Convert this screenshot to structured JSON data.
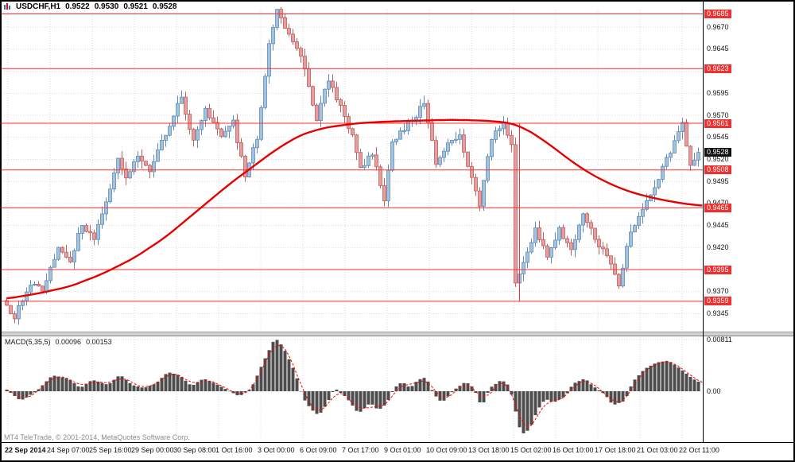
{
  "window": {
    "title_symbol": "USDCHF,H1",
    "ohlc": {
      "open": "0.9522",
      "high": "0.9530",
      "low": "0.9521",
      "close": "0.9528"
    },
    "copyright": "MT4 TeleTrade, © 2001-2014, MetaQuotes Software Corp."
  },
  "colors": {
    "up_fill": "#a3c2de",
    "up_stroke": "#5d8cba",
    "down_fill": "#e59d9d",
    "down_stroke": "#c25e5e",
    "ma": "#e60000",
    "level": "#ff2e2e",
    "grid": "#d9d9d9",
    "histogram": "#4d4d4d",
    "signal": "#ff0000",
    "tag_red": "#ee3030",
    "tag_black": "#111111"
  },
  "chart_data": {
    "type": "candlestick",
    "symbol": "USDCHF",
    "timeframe": "H1",
    "quote": {
      "open": 0.9522,
      "high": 0.953,
      "low": 0.9521,
      "close": 0.9528
    },
    "current_price": 0.9528,
    "y_axis": {
      "min": 0.933,
      "max": 0.969,
      "labels": [
        0.967,
        0.9645,
        0.962,
        0.9595,
        0.957,
        0.9545,
        0.952,
        0.9495,
        0.947,
        0.9445,
        0.942,
        0.9395,
        0.937,
        0.9345
      ]
    },
    "levels": [
      0.9685,
      0.9623,
      0.9561,
      0.9508,
      0.9465,
      0.9395,
      0.9359
    ],
    "vertical_line": {
      "bar": 129,
      "from": 0.9561,
      "to": 0.9359
    },
    "price_path": [
      [
        0,
        0.936
      ],
      [
        3,
        0.9342
      ],
      [
        7,
        0.938
      ],
      [
        10,
        0.9372
      ],
      [
        14,
        0.942
      ],
      [
        17,
        0.9406
      ],
      [
        20,
        0.9446
      ],
      [
        23,
        0.943
      ],
      [
        26,
        0.947
      ],
      [
        29,
        0.9524
      ],
      [
        31,
        0.95
      ],
      [
        34,
        0.9526
      ],
      [
        37,
        0.9506
      ],
      [
        41,
        0.955
      ],
      [
        45,
        0.959
      ],
      [
        48,
        0.954
      ],
      [
        51,
        0.9576
      ],
      [
        55,
        0.9545
      ],
      [
        58,
        0.9562
      ],
      [
        61,
        0.95
      ],
      [
        64,
        0.9545
      ],
      [
        67,
        0.9648
      ],
      [
        69,
        0.9688
      ],
      [
        72,
        0.9664
      ],
      [
        75,
        0.964
      ],
      [
        77,
        0.96
      ],
      [
        79,
        0.9565
      ],
      [
        82,
        0.9612
      ],
      [
        85,
        0.958
      ],
      [
        88,
        0.9545
      ],
      [
        90,
        0.951
      ],
      [
        93,
        0.9526
      ],
      [
        96,
        0.9476
      ],
      [
        98,
        0.954
      ],
      [
        101,
        0.9556
      ],
      [
        104,
        0.957
      ],
      [
        106,
        0.9586
      ],
      [
        109,
        0.9514
      ],
      [
        112,
        0.954
      ],
      [
        115,
        0.9546
      ],
      [
        118,
        0.95
      ],
      [
        120,
        0.9468
      ],
      [
        123,
        0.9546
      ],
      [
        126,
        0.956
      ],
      [
        128,
        0.954
      ],
      [
        129,
        0.938
      ],
      [
        131,
        0.94
      ],
      [
        134,
        0.9442
      ],
      [
        137,
        0.941
      ],
      [
        140,
        0.944
      ],
      [
        143,
        0.942
      ],
      [
        146,
        0.9456
      ],
      [
        149,
        0.943
      ],
      [
        152,
        0.941
      ],
      [
        155,
        0.9378
      ],
      [
        158,
        0.944
      ],
      [
        161,
        0.9464
      ],
      [
        164,
        0.949
      ],
      [
        167,
        0.952
      ],
      [
        170,
        0.9548
      ],
      [
        171,
        0.956
      ],
      [
        173,
        0.9514
      ],
      [
        176,
        0.9528
      ]
    ],
    "ma": {
      "name": "Moving Average",
      "points": [
        [
          0,
          0.9362
        ],
        [
          8,
          0.9368
        ],
        [
          16,
          0.9376
        ],
        [
          24,
          0.939
        ],
        [
          32,
          0.9408
        ],
        [
          40,
          0.9432
        ],
        [
          48,
          0.9462
        ],
        [
          56,
          0.9492
        ],
        [
          62,
          0.9512
        ],
        [
          68,
          0.9532
        ],
        [
          74,
          0.9548
        ],
        [
          80,
          0.9556
        ],
        [
          88,
          0.9561
        ],
        [
          96,
          0.9563
        ],
        [
          104,
          0.9564
        ],
        [
          112,
          0.9565
        ],
        [
          120,
          0.9564
        ],
        [
          126,
          0.9562
        ],
        [
          130,
          0.9556
        ],
        [
          134,
          0.9545
        ],
        [
          138,
          0.9532
        ],
        [
          142,
          0.9518
        ],
        [
          146,
          0.9506
        ],
        [
          150,
          0.9496
        ],
        [
          155,
          0.9486
        ],
        [
          160,
          0.9479
        ],
        [
          165,
          0.9474
        ],
        [
          170,
          0.947
        ],
        [
          176,
          0.9467
        ]
      ]
    },
    "time_axis": {
      "labels": [
        "22 Sep 2014",
        "24 Sep 07:00",
        "25 Sep 16:00",
        "29 Sep 00:00",
        "30 Sep 08:00",
        "1 Oct 16:00",
        "3 Oct 00:00",
        "6 Oct 09:00",
        "7 Oct 17:00",
        "9 Oct 01:00",
        "10 Oct 09:00",
        "13 Oct 18:00",
        "15 Oct 02:00",
        "16 Oct 10:00",
        "17 Oct 18:00",
        "21 Oct 03:00",
        "22 Oct 11:00"
      ]
    },
    "macd": {
      "label": "MACD(5,35,5)",
      "value_main": "0.00096",
      "value_signal": "0.00153",
      "axis": [
        {
          "value": 0.00811,
          "label": "0.00811"
        },
        {
          "value": 0,
          "label": "0.00"
        }
      ],
      "path": [
        [
          0,
          0.0005
        ],
        [
          4,
          -0.0015
        ],
        [
          8,
          0.0
        ],
        [
          12,
          0.0025
        ],
        [
          16,
          0.002
        ],
        [
          19,
          0.0005
        ],
        [
          22,
          0.0018
        ],
        [
          26,
          0.001
        ],
        [
          29,
          0.0026
        ],
        [
          32,
          0.001
        ],
        [
          35,
          0.0005
        ],
        [
          38,
          0.0012
        ],
        [
          41,
          0.003
        ],
        [
          44,
          0.0025
        ],
        [
          47,
          0.0008
        ],
        [
          50,
          0.002
        ],
        [
          53,
          0.0012
        ],
        [
          56,
          0.0002
        ],
        [
          59,
          -0.0008
        ],
        [
          62,
          0.0004
        ],
        [
          65,
          0.0045
        ],
        [
          68,
          0.0084
        ],
        [
          70,
          0.007
        ],
        [
          73,
          0.003
        ],
        [
          75,
          -0.001
        ],
        [
          77,
          -0.0028
        ],
        [
          79,
          -0.0038
        ],
        [
          81,
          -0.002
        ],
        [
          83,
          0.0005
        ],
        [
          86,
          -0.001
        ],
        [
          89,
          -0.0035
        ],
        [
          92,
          -0.0018
        ],
        [
          94,
          -0.003
        ],
        [
          96,
          -0.002
        ],
        [
          98,
          0.0005
        ],
        [
          100,
          0.0015
        ],
        [
          102,
          0.0005
        ],
        [
          104,
          0.0018
        ],
        [
          106,
          0.0022
        ],
        [
          108,
          -0.0005
        ],
        [
          110,
          -0.0018
        ],
        [
          113,
          0.0002
        ],
        [
          116,
          0.0015
        ],
        [
          118,
          0.0005
        ],
        [
          120,
          -0.0025
        ],
        [
          122,
          0.0005
        ],
        [
          125,
          0.0018
        ],
        [
          127,
          0.0008
        ],
        [
          129,
          -0.0045
        ],
        [
          130,
          -0.0068
        ],
        [
          132,
          -0.006
        ],
        [
          134,
          -0.003
        ],
        [
          136,
          -0.0012
        ],
        [
          138,
          -0.0018
        ],
        [
          141,
          -0.0008
        ],
        [
          143,
          0.0012
        ],
        [
          146,
          0.002
        ],
        [
          148,
          0.0008
        ],
        [
          151,
          -0.0005
        ],
        [
          153,
          -0.0022
        ],
        [
          156,
          -0.0015
        ],
        [
          158,
          0.0015
        ],
        [
          161,
          0.0035
        ],
        [
          164,
          0.0045
        ],
        [
          167,
          0.0048
        ],
        [
          170,
          0.0035
        ],
        [
          173,
          0.002
        ],
        [
          176,
          0.001
        ]
      ]
    }
  }
}
